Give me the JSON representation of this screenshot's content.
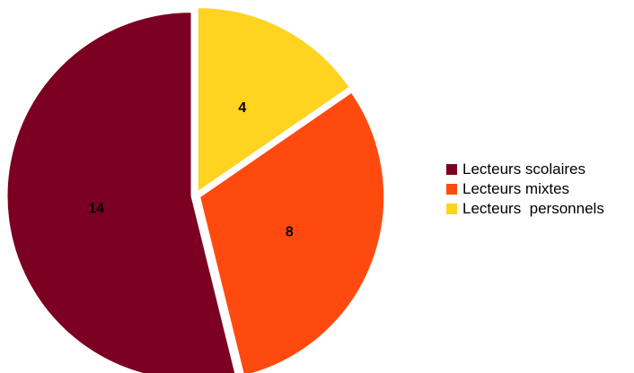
{
  "chart_data": {
    "type": "pie",
    "title": "",
    "categories": [
      "Lecteurs scolaires",
      "Lecteurs mixtes",
      "Lecteurs  personnels"
    ],
    "values": [
      14,
      8,
      4
    ],
    "colors": [
      "#7b0021",
      "#ff4a0f",
      "#ffd320"
    ],
    "data_labels": [
      "14",
      "8",
      "4"
    ],
    "legend_position": "right"
  }
}
